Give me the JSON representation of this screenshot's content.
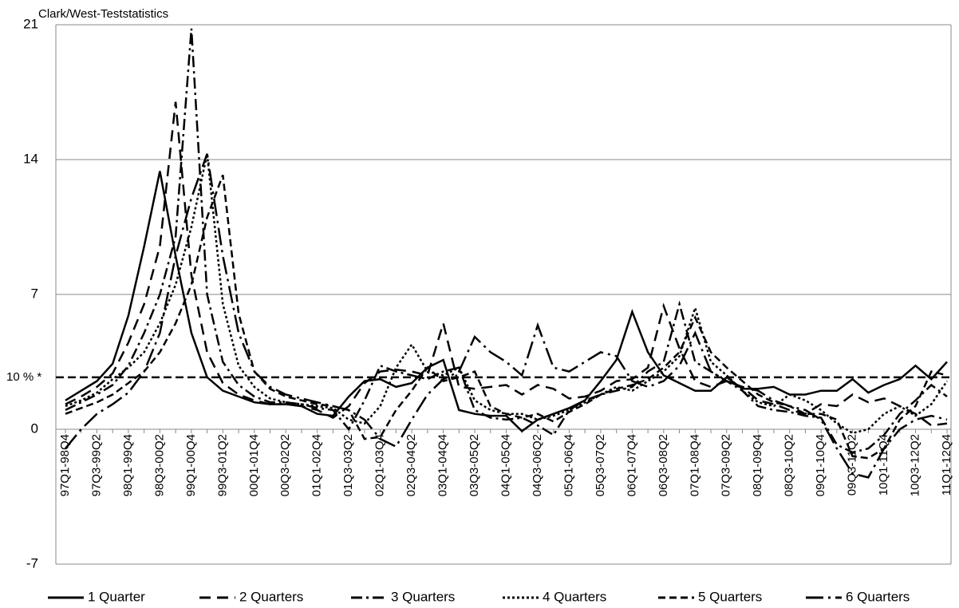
{
  "chart_data": {
    "type": "line",
    "y_label": "Clark/West-Teststatistics",
    "categories": [
      "97Q1-98Q4",
      null,
      "97Q3-99Q2",
      null,
      "98Q1-99Q4",
      null,
      "98Q3-00Q2",
      null,
      "99Q1-00Q4",
      null,
      "99Q3-01Q2",
      null,
      "00Q1-01Q4",
      null,
      "00Q3-02Q2",
      null,
      "01Q1-02Q4",
      null,
      "01Q3-03Q2",
      null,
      "02Q1-03Q4",
      null,
      "02Q3-04Q2",
      null,
      "03Q1-04Q4",
      null,
      "03Q3-05Q2",
      null,
      "04Q1-05Q4",
      null,
      "04Q3-06Q2",
      null,
      "05Q1-06Q4",
      null,
      "05Q3-07Q2",
      null,
      "06Q1-07Q4",
      null,
      "06Q3-08Q2",
      null,
      "07Q1-08Q4",
      null,
      "07Q3-09Q2",
      null,
      "08Q1-09Q4",
      null,
      "08Q3-10Q2",
      null,
      "09Q1-10Q4",
      null,
      "09Q3-11Q2",
      null,
      "10Q1-11Q4",
      null,
      "10Q3-12Q2",
      null,
      "11Q1-12Q4"
    ],
    "series": [
      {
        "name": "1 Quarter",
        "color": "#000000",
        "dash": "none",
        "values": [
          1.5,
          2.0,
          2.5,
          3.4,
          5.9,
          9.5,
          13.4,
          9.0,
          5.0,
          2.7,
          2.0,
          1.7,
          1.4,
          1.3,
          1.3,
          1.2,
          0.8,
          0.7,
          1.7,
          2.5,
          2.6,
          2.2,
          2.4,
          3.2,
          3.6,
          1.0,
          0.8,
          0.7,
          0.7,
          -0.1,
          0.5,
          0.8,
          1.1,
          1.5,
          2.5,
          3.6,
          6.1,
          4.0,
          2.8,
          2.4,
          2.0,
          2.0,
          2.7,
          2.1,
          2.1,
          2.2,
          1.8,
          1.8,
          2.0,
          2.0,
          2.6,
          1.9,
          2.3,
          2.6,
          3.3,
          2.6,
          3.5
        ]
      },
      {
        "name": "2 Quarters",
        "color": "#000000",
        "dash": "14 8",
        "values": [
          1.3,
          1.7,
          2.2,
          2.9,
          4.5,
          6.5,
          9.5,
          17.0,
          8.0,
          4.0,
          2.4,
          1.8,
          1.5,
          1.3,
          1.3,
          1.2,
          1.0,
          0.6,
          1.2,
          2.4,
          3.0,
          3.1,
          3.0,
          2.8,
          5.5,
          2.2,
          2.1,
          2.2,
          2.3,
          1.8,
          2.3,
          2.1,
          1.6,
          1.7,
          2.0,
          2.5,
          2.6,
          3.2,
          6.4,
          4.2,
          2.5,
          2.2,
          2.5,
          2.2,
          1.5,
          1.3,
          1.0,
          0.8,
          1.3,
          1.2,
          1.8,
          1.4,
          1.6,
          1.2,
          0.8,
          0.2,
          0.3
        ]
      },
      {
        "name": "3 Quarters",
        "color": "#000000",
        "dash": "14 5 3 5",
        "values": [
          1.0,
          1.4,
          1.8,
          2.3,
          3.3,
          5.0,
          7.0,
          10.0,
          20.8,
          7.0,
          3.5,
          2.3,
          1.7,
          1.4,
          1.4,
          1.3,
          1.1,
          1.0,
          0.0,
          1.5,
          3.3,
          3.0,
          2.8,
          2.6,
          3.0,
          3.2,
          1.0,
          0.6,
          0.5,
          0.6,
          0.2,
          -0.3,
          1.0,
          1.5,
          1.8,
          2.0,
          2.2,
          3.0,
          3.5,
          6.5,
          3.5,
          3.0,
          2.5,
          2.0,
          1.2,
          1.0,
          0.9,
          0.7,
          0.6,
          -0.8,
          -1.2,
          -1.0,
          -0.3,
          0.8,
          1.5,
          2.3,
          1.7
        ]
      },
      {
        "name": "4 Quarters",
        "color": "#000000",
        "dash": "3 3",
        "values": [
          1.2,
          1.5,
          1.9,
          2.6,
          3.2,
          4.0,
          5.5,
          7.5,
          10.5,
          14.3,
          6.5,
          3.3,
          2.2,
          1.6,
          1.4,
          1.3,
          1.2,
          1.1,
          0.5,
          0.3,
          1.2,
          3.2,
          4.4,
          3.0,
          2.8,
          3.2,
          1.5,
          1.0,
          0.8,
          0.8,
          0.5,
          0.7,
          1.0,
          1.4,
          1.8,
          2.2,
          2.0,
          2.5,
          3.0,
          3.8,
          6.3,
          3.5,
          2.8,
          2.0,
          1.4,
          1.2,
          1.8,
          1.5,
          1.0,
          0.3,
          -0.2,
          0.0,
          0.8,
          1.2,
          0.7,
          1.3,
          2.5
        ]
      },
      {
        "name": "5 Quarters",
        "color": "#000000",
        "dash": "9 5",
        "values": [
          0.8,
          1.1,
          1.4,
          1.8,
          2.4,
          3.0,
          4.0,
          5.5,
          7.5,
          11.0,
          13.2,
          6.0,
          3.0,
          2.1,
          1.7,
          1.5,
          1.3,
          1.2,
          1.0,
          -0.5,
          -0.4,
          1.0,
          2.0,
          3.2,
          2.5,
          2.7,
          3.0,
          1.2,
          0.8,
          0.6,
          0.8,
          0.4,
          0.9,
          1.3,
          1.8,
          2.1,
          2.3,
          2.6,
          3.2,
          4.0,
          5.8,
          4.0,
          3.2,
          2.5,
          1.8,
          1.4,
          1.2,
          0.8,
          0.8,
          0.5,
          -1.4,
          -1.5,
          -1.0,
          0.5,
          1.2,
          3.0,
          2.8
        ]
      },
      {
        "name": "6 Quarters",
        "color": "#000000",
        "dash": "22 6 3 6",
        "values": [
          -1.0,
          0.0,
          0.8,
          1.3,
          1.9,
          3.0,
          5.0,
          9.0,
          12.0,
          14.3,
          9.0,
          5.0,
          3.0,
          2.2,
          1.8,
          1.6,
          1.4,
          1.2,
          1.0,
          0.5,
          -0.5,
          -0.9,
          0.5,
          1.8,
          2.6,
          3.0,
          4.8,
          4.0,
          3.5,
          2.8,
          5.4,
          3.2,
          3.0,
          3.5,
          4.0,
          3.8,
          2.5,
          2.2,
          2.5,
          3.3,
          5.0,
          3.0,
          2.5,
          2.2,
          2.0,
          1.5,
          1.2,
          1.0,
          0.5,
          -1.0,
          -2.3,
          -2.5,
          -1.0,
          0.0,
          0.5,
          0.7,
          0.5
        ]
      }
    ],
    "threshold": {
      "value": 2.7,
      "label": "10 % *"
    },
    "ylim": [
      -7,
      21
    ],
    "yticks": [
      -7,
      0,
      7,
      14,
      21
    ],
    "grid": true
  }
}
